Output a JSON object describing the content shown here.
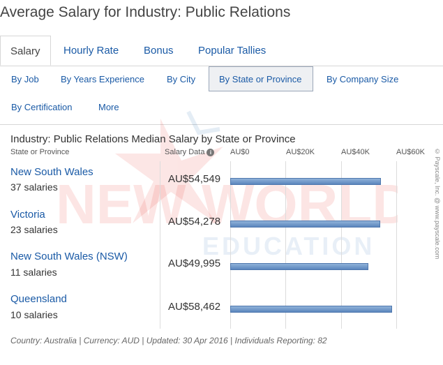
{
  "page_title": "Average Salary for Industry: Public Relations",
  "tabs": [
    {
      "label": "Salary"
    },
    {
      "label": "Hourly Rate"
    },
    {
      "label": "Bonus"
    },
    {
      "label": "Popular Tallies"
    }
  ],
  "subnav": [
    {
      "label": "By Job"
    },
    {
      "label": "By Years Experience"
    },
    {
      "label": "By City"
    },
    {
      "label": "By State or Province"
    },
    {
      "label": "By Company Size"
    },
    {
      "label": "By Certification"
    },
    {
      "label": "More"
    }
  ],
  "chart": {
    "title": "Industry: Public Relations Median Salary by State or Province",
    "col_region": "State or Province",
    "col_salary": "Salary Data",
    "info_glyph": "i",
    "axis_ticks": [
      "AU$0",
      "AU$20K",
      "AU$40K",
      "AU$60K"
    ],
    "copyright": "© Payscale, Inc. @ www.payscale.com"
  },
  "chart_data": {
    "type": "bar",
    "categories": [
      "New South Wales",
      "Victoria",
      "New South Wales (NSW)",
      "Queensland"
    ],
    "values": [
      54549,
      54278,
      49995,
      58462
    ],
    "xlim": [
      0,
      60000
    ]
  },
  "rows": [
    {
      "region": "New South Wales",
      "count": "37 salaries",
      "salary": "AU$54,549"
    },
    {
      "region": "Victoria",
      "count": "23 salaries",
      "salary": "AU$54,278"
    },
    {
      "region": "New South Wales (NSW)",
      "count": "11 salaries",
      "salary": "AU$49,995"
    },
    {
      "region": "Queensland",
      "count": "10 salaries",
      "salary": "AU$58,462"
    }
  ],
  "footer": "Country: Australia | Currency: AUD | Updated: 30 Apr 2016 | Individuals Reporting: 82",
  "watermark": {
    "line1": "NEW WORLD",
    "line2": "EDUCATION"
  },
  "colors": {
    "link": "#1a5aa6",
    "bar": "#6d95c7",
    "watermark": "#e8342b"
  }
}
